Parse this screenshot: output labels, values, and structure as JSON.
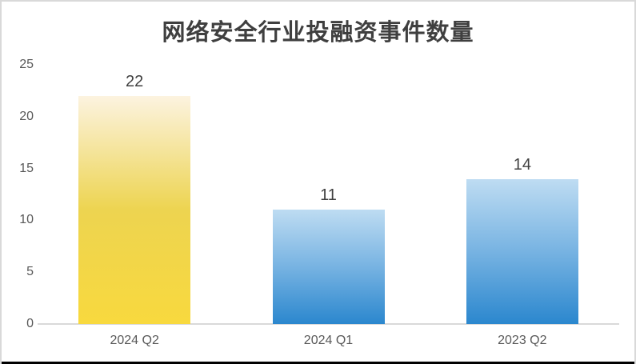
{
  "frame": {
    "background": "#ffffff",
    "border_color": "#d9d9d9",
    "bottom_edge_color": "#000000"
  },
  "chart_data": {
    "type": "bar",
    "title": "网络安全行业投融资事件数量",
    "categories": [
      "2024 Q2",
      "2024 Q1",
      "2023 Q2"
    ],
    "values": [
      22,
      11,
      14
    ],
    "data_labels": [
      "22",
      "11",
      "14"
    ],
    "xlabel": "",
    "ylabel": "",
    "ylim": [
      0,
      25
    ],
    "yticks": [
      0,
      5,
      10,
      15,
      20,
      25
    ],
    "grid": false,
    "legend": "none",
    "bar_gradients": [
      {
        "top": "#FCF3E0",
        "mid": "#EDD450",
        "bottom": "#F8D93E"
      },
      {
        "top": "#BEDCF2",
        "mid": "#77B3E2",
        "bottom": "#2B87CE"
      },
      {
        "top": "#BEDCF2",
        "mid": "#77B3E2",
        "bottom": "#2B87CE"
      }
    ],
    "colors": {
      "title": "#3f3f3f",
      "axis_labels": "#595959",
      "value_labels": "#404040",
      "axis_line": "#d9d9d9"
    }
  }
}
